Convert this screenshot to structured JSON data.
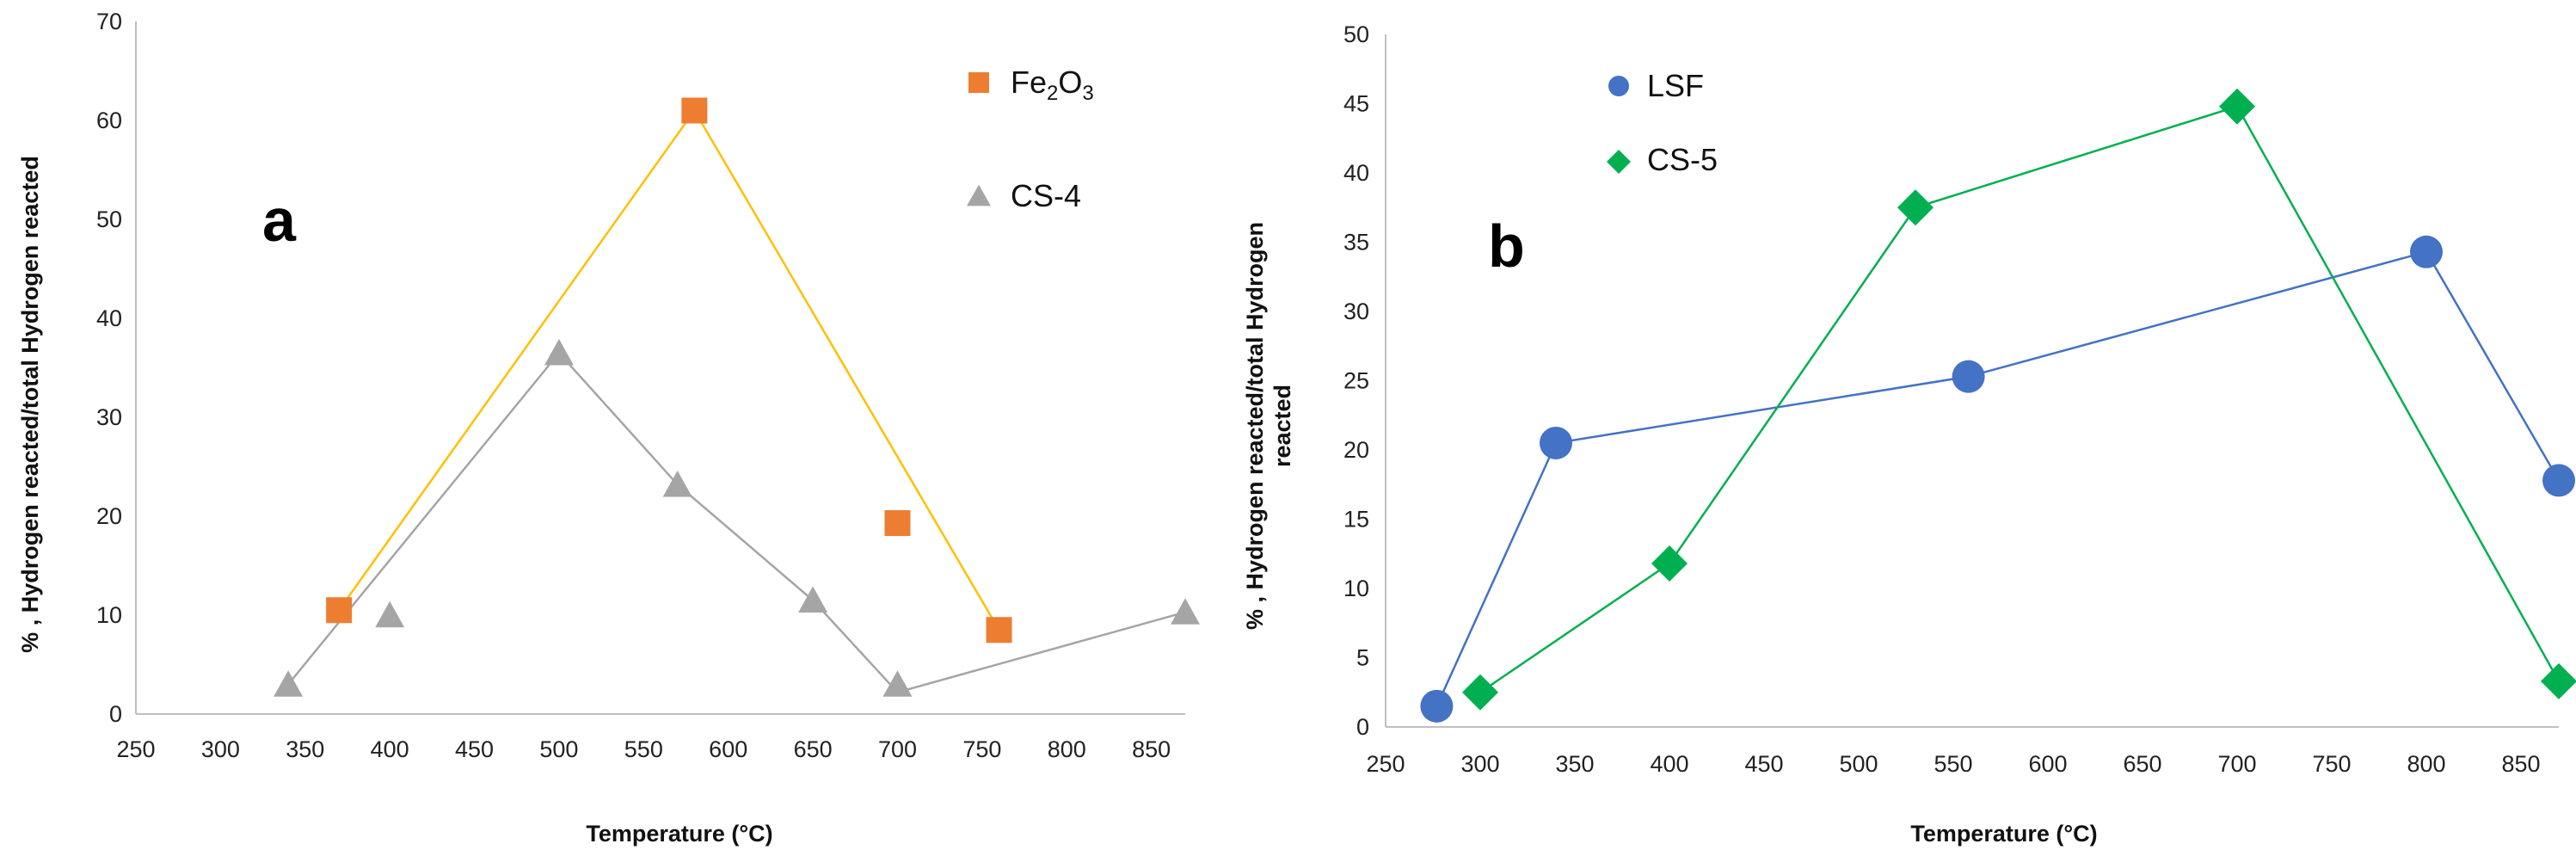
{
  "chart_data": [
    {
      "type": "scatter",
      "panel_label": "a",
      "title": "",
      "xlabel": "Temperature (°C)",
      "ylabel": "% , Hydrogen reacted/total Hydrogen reacted",
      "xlim": [
        250,
        870
      ],
      "ylim": [
        0,
        70
      ],
      "xticks": [
        "250",
        "300",
        "350",
        "400",
        "450",
        "500",
        "550",
        "600",
        "650",
        "700",
        "750",
        "800",
        "850"
      ],
      "yticks": [
        "0",
        "10",
        "20",
        "30",
        "40",
        "50",
        "60",
        "70"
      ],
      "grid": false,
      "legend_position": "top-right",
      "series": [
        {
          "name": "Fe2O3",
          "label_main": "Fe",
          "label_sub1": "2",
          "label_mid": "O",
          "label_sub2": "3",
          "marker": "square",
          "color": "#ED7D31",
          "points": [
            [
              370,
              10.5
            ],
            [
              580,
              61
            ],
            [
              700,
              19.3
            ],
            [
              760,
              8.5
            ]
          ],
          "trendline": {
            "color": "#FFC000",
            "points": [
              [
                370,
                10.5
              ],
              [
                580,
                61
              ],
              [
                760,
                8.5
              ]
            ]
          }
        },
        {
          "name": "CS-4",
          "marker": "triangle",
          "color": "#A5A5A5",
          "points": [
            [
              340,
              3
            ],
            [
              400,
              10
            ],
            [
              500,
              36.5
            ],
            [
              570,
              23.2
            ],
            [
              650,
              11.5
            ],
            [
              700,
              3
            ],
            [
              870,
              10.3
            ]
          ],
          "trendline": {
            "color": "#A5A5A5",
            "points": [
              [
                340,
                3
              ],
              [
                500,
                36.5
              ],
              [
                570,
                23.2
              ],
              [
                650,
                11.5
              ],
              [
                700,
                2.2
              ],
              [
                870,
                10.3
              ]
            ]
          }
        }
      ]
    },
    {
      "type": "line",
      "panel_label": "b",
      "title": "",
      "xlabel": "Temperature (°C)",
      "ylabel_line1": "% , Hydrogen reacted/total Hydrogen",
      "ylabel_line2": "reacted",
      "xlim": [
        250,
        870
      ],
      "ylim": [
        0,
        50
      ],
      "xticks": [
        "250",
        "300",
        "350",
        "400",
        "450",
        "500",
        "550",
        "600",
        "650",
        "700",
        "750",
        "800",
        "850"
      ],
      "yticks": [
        "0",
        "5",
        "10",
        "15",
        "20",
        "25",
        "30",
        "35",
        "40",
        "45",
        "50"
      ],
      "grid": false,
      "legend_position": "top-left",
      "series": [
        {
          "name": "LSF",
          "marker": "circle",
          "color": "#4472C4",
          "points": [
            [
              277,
              1.5
            ],
            [
              340,
              20.5
            ],
            [
              558,
              25.3
            ],
            [
              800,
              34.3
            ],
            [
              870,
              17.8
            ]
          ]
        },
        {
          "name": "CS-5",
          "marker": "diamond",
          "color": "#00B050",
          "points": [
            [
              300,
              2.5
            ],
            [
              400,
              11.8
            ],
            [
              530,
              37.5
            ],
            [
              700,
              44.8
            ],
            [
              870,
              3.3
            ]
          ]
        }
      ]
    }
  ]
}
